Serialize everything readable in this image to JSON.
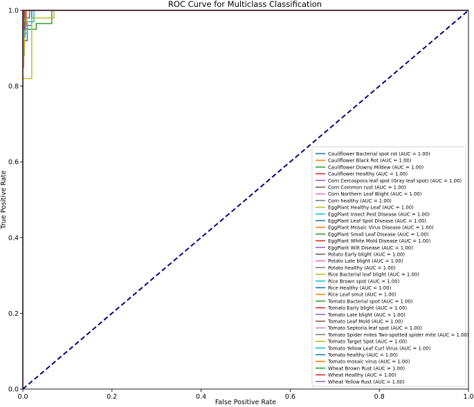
{
  "chart_data": {
    "type": "line",
    "title": "ROC Curve for Multiclass Classification",
    "xlabel": "False Positive Rate",
    "ylabel": "True Positive Rate",
    "xlim": [
      0.0,
      1.0
    ],
    "ylim": [
      0.0,
      1.0
    ],
    "xticks": [
      "0.0",
      "0.2",
      "0.4",
      "0.6",
      "0.8",
      "1.0"
    ],
    "yticks": [
      "0.0",
      "0.2",
      "0.4",
      "0.6",
      "0.8",
      "1.0"
    ],
    "grid": false,
    "legend_position": "lower-right",
    "diagonal": {
      "x": [
        0,
        1
      ],
      "y": [
        0,
        1
      ],
      "color": "#000080",
      "style": "dashed"
    },
    "series": [
      {
        "name": "Cauliflower Bacterial spot rot (AUC = 1.00)",
        "color": "#1f77b4",
        "x": [
          0,
          0,
          0.01,
          0.01,
          0.02,
          0.02,
          1
        ],
        "y": [
          0,
          0.92,
          0.92,
          0.96,
          0.96,
          1,
          1
        ]
      },
      {
        "name": "Cauliflower Black Rot (AUC = 1.00)",
        "color": "#ff7f0e",
        "x": [
          0,
          0,
          0.005,
          0.005,
          1
        ],
        "y": [
          0,
          0.95,
          0.95,
          1,
          1
        ]
      },
      {
        "name": "Cauliflower Downy Mildew (AUC = 1.00)",
        "color": "#2ca02c",
        "x": [
          0,
          0,
          0.03,
          0.03,
          0.065,
          0.065,
          1
        ],
        "y": [
          0,
          0.95,
          0.95,
          0.965,
          0.965,
          1,
          1
        ]
      },
      {
        "name": "Cauliflower Healthy (AUC = 1.00)",
        "color": "#d62728",
        "x": [
          0,
          0,
          1
        ],
        "y": [
          0,
          1,
          1
        ]
      },
      {
        "name": "Corn Cercospora leaf spot (Gray leaf spot) (AUC = 1.00)",
        "color": "#9467bd",
        "x": [
          0,
          0,
          0.005,
          0.005,
          1
        ],
        "y": [
          0,
          0.96,
          0.96,
          1,
          1
        ]
      },
      {
        "name": "Corn Common rust (AUC = 1.00)",
        "color": "#8c564b",
        "x": [
          0,
          0,
          1
        ],
        "y": [
          0,
          1,
          1
        ]
      },
      {
        "name": "Corn Northern Leaf Blight (AUC = 1.00)",
        "color": "#e377c2",
        "x": [
          0,
          0,
          0.003,
          0.003,
          1
        ],
        "y": [
          0,
          0.97,
          0.97,
          1,
          1
        ]
      },
      {
        "name": "Corn healthy (AUC = 1.00)",
        "color": "#7f7f7f",
        "x": [
          0,
          0,
          1
        ],
        "y": [
          0,
          1,
          1
        ]
      },
      {
        "name": "EggPlant Healthy Leaf (AUC = 1.00)",
        "color": "#bcbd22",
        "x": [
          0,
          0,
          0.02,
          0.02,
          0.07,
          0.07,
          1
        ],
        "y": [
          0,
          0.82,
          0.82,
          0.98,
          0.98,
          1,
          1
        ]
      },
      {
        "name": "EggPlant Insect Pest Disease (AUC = 1.00)",
        "color": "#17becf",
        "x": [
          0,
          0,
          0.01,
          0.01,
          0.025,
          0.025,
          1
        ],
        "y": [
          0,
          0.94,
          0.94,
          0.97,
          0.97,
          1,
          1
        ]
      },
      {
        "name": "EggPlant Leaf Spot Disease (AUC = 1.00)",
        "color": "#1f77b4",
        "x": [
          0,
          0,
          0.005,
          0.005,
          0.015,
          0.015,
          1
        ],
        "y": [
          0,
          0.93,
          0.93,
          0.98,
          0.98,
          1,
          1
        ]
      },
      {
        "name": "EggPlant Mosaic Virus Disease (AUC = 1.00)",
        "color": "#ff7f0e",
        "x": [
          0,
          0,
          0.008,
          0.008,
          1
        ],
        "y": [
          0,
          0.96,
          0.96,
          1,
          1
        ]
      },
      {
        "name": "EggPlant Small Leaf Disease (AUC = 1.00)",
        "color": "#2ca02c",
        "x": [
          0,
          0,
          0.003,
          0.003,
          1
        ],
        "y": [
          0,
          0.88,
          0.88,
          1,
          1
        ]
      },
      {
        "name": "EggPlant White Mold Disease (AUC = 1.00)",
        "color": "#d62728",
        "x": [
          0,
          0,
          0.004,
          0.004,
          1
        ],
        "y": [
          0,
          0.97,
          0.97,
          1,
          1
        ]
      },
      {
        "name": "EggPlant Wilt Disease (AUC = 1.00)",
        "color": "#9467bd",
        "x": [
          0,
          0,
          0.006,
          0.006,
          1
        ],
        "y": [
          0,
          0.95,
          0.95,
          1,
          1
        ]
      },
      {
        "name": "Potato Early blight (AUC = 1.00)",
        "color": "#8c564b",
        "x": [
          0,
          0,
          1
        ],
        "y": [
          0,
          1,
          1
        ]
      },
      {
        "name": "Potato Late blight (AUC = 1.00)",
        "color": "#e377c2",
        "x": [
          0,
          0,
          0.002,
          0.002,
          1
        ],
        "y": [
          0,
          0.98,
          0.98,
          1,
          1
        ]
      },
      {
        "name": "Potato healthy (AUC = 1.00)",
        "color": "#7f7f7f",
        "x": [
          0,
          0,
          1
        ],
        "y": [
          0,
          1,
          1
        ]
      },
      {
        "name": "Rice Bacterial leaf blight (AUC = 1.00)",
        "color": "#bcbd22",
        "x": [
          0,
          0,
          0.004,
          0.004,
          1
        ],
        "y": [
          0,
          0.9,
          0.9,
          1,
          1
        ]
      },
      {
        "name": "Rice Brown spot (AUC = 1.00)",
        "color": "#17becf",
        "x": [
          0,
          0,
          0.005,
          0.005,
          1
        ],
        "y": [
          0,
          0.93,
          0.93,
          1,
          1
        ]
      },
      {
        "name": "Rice Healthy (AUC = 1.00)",
        "color": "#1f77b4",
        "x": [
          0,
          0,
          0.004,
          0.004,
          1
        ],
        "y": [
          0,
          0.95,
          0.95,
          1,
          1
        ]
      },
      {
        "name": "Rice Leaf smut (AUC = 1.00)",
        "color": "#ff7f0e",
        "x": [
          0,
          0,
          0.002,
          0.002,
          1
        ],
        "y": [
          0,
          0.85,
          0.85,
          1,
          1
        ]
      },
      {
        "name": "Tomato Bacterial spot (AUC = 1.00)",
        "color": "#2ca02c",
        "x": [
          0,
          0,
          1
        ],
        "y": [
          0,
          1,
          1
        ]
      },
      {
        "name": "Tomato Early blight (AUC = 1.00)",
        "color": "#d62728",
        "x": [
          0,
          0,
          0.003,
          0.003,
          1
        ],
        "y": [
          0,
          0.95,
          0.95,
          1,
          1
        ]
      },
      {
        "name": "Tomato Late blight (AUC = 1.00)",
        "color": "#9467bd",
        "x": [
          0,
          0,
          0.002,
          0.002,
          1
        ],
        "y": [
          0,
          0.97,
          0.97,
          1,
          1
        ]
      },
      {
        "name": "Tomato Leaf Mold (AUC = 1.00)",
        "color": "#8c564b",
        "x": [
          0,
          0,
          1
        ],
        "y": [
          0,
          1,
          1
        ]
      },
      {
        "name": "Tomato Septoria leaf spot (AUC = 1.00)",
        "color": "#e377c2",
        "x": [
          0,
          0,
          0.002,
          0.002,
          1
        ],
        "y": [
          0,
          0.98,
          0.98,
          1,
          1
        ]
      },
      {
        "name": "Tomato Spider mites Two-spotted spider mite (AUC = 1.00)",
        "color": "#7f7f7f",
        "x": [
          0,
          0,
          1
        ],
        "y": [
          0,
          1,
          1
        ]
      },
      {
        "name": "Tomato Target Spot (AUC = 1.00)",
        "color": "#bcbd22",
        "x": [
          0,
          0,
          0.003,
          0.003,
          1
        ],
        "y": [
          0,
          0.97,
          0.97,
          1,
          1
        ]
      },
      {
        "name": "Tomato Yellow Leaf Curl Virus (AUC = 1.00)",
        "color": "#17becf",
        "x": [
          0,
          0,
          1
        ],
        "y": [
          0,
          1,
          1
        ]
      },
      {
        "name": "Tomato healthy (AUC = 1.00)",
        "color": "#1f77b4",
        "x": [
          0,
          0,
          1
        ],
        "y": [
          0,
          1,
          1
        ]
      },
      {
        "name": "Tomato mosaic virus (AUC = 1.00)",
        "color": "#ff7f0e",
        "x": [
          0,
          0,
          1
        ],
        "y": [
          0,
          1,
          1
        ]
      },
      {
        "name": "Wheat Brown Rust (AUC = 1.00)",
        "color": "#2ca02c",
        "x": [
          0,
          0,
          0.002,
          0.002,
          1
        ],
        "y": [
          0,
          0.96,
          0.96,
          1,
          1
        ]
      },
      {
        "name": "Wheat Healthy (AUC = 1.00)",
        "color": "#d62728",
        "x": [
          0,
          0,
          0.003,
          0.003,
          1
        ],
        "y": [
          0,
          0.98,
          0.98,
          1,
          1
        ]
      },
      {
        "name": "Wheat Yellow Rust (AUC = 1.00)",
        "color": "#9467bd",
        "x": [
          0,
          0,
          1
        ],
        "y": [
          0,
          1,
          1
        ]
      }
    ]
  }
}
